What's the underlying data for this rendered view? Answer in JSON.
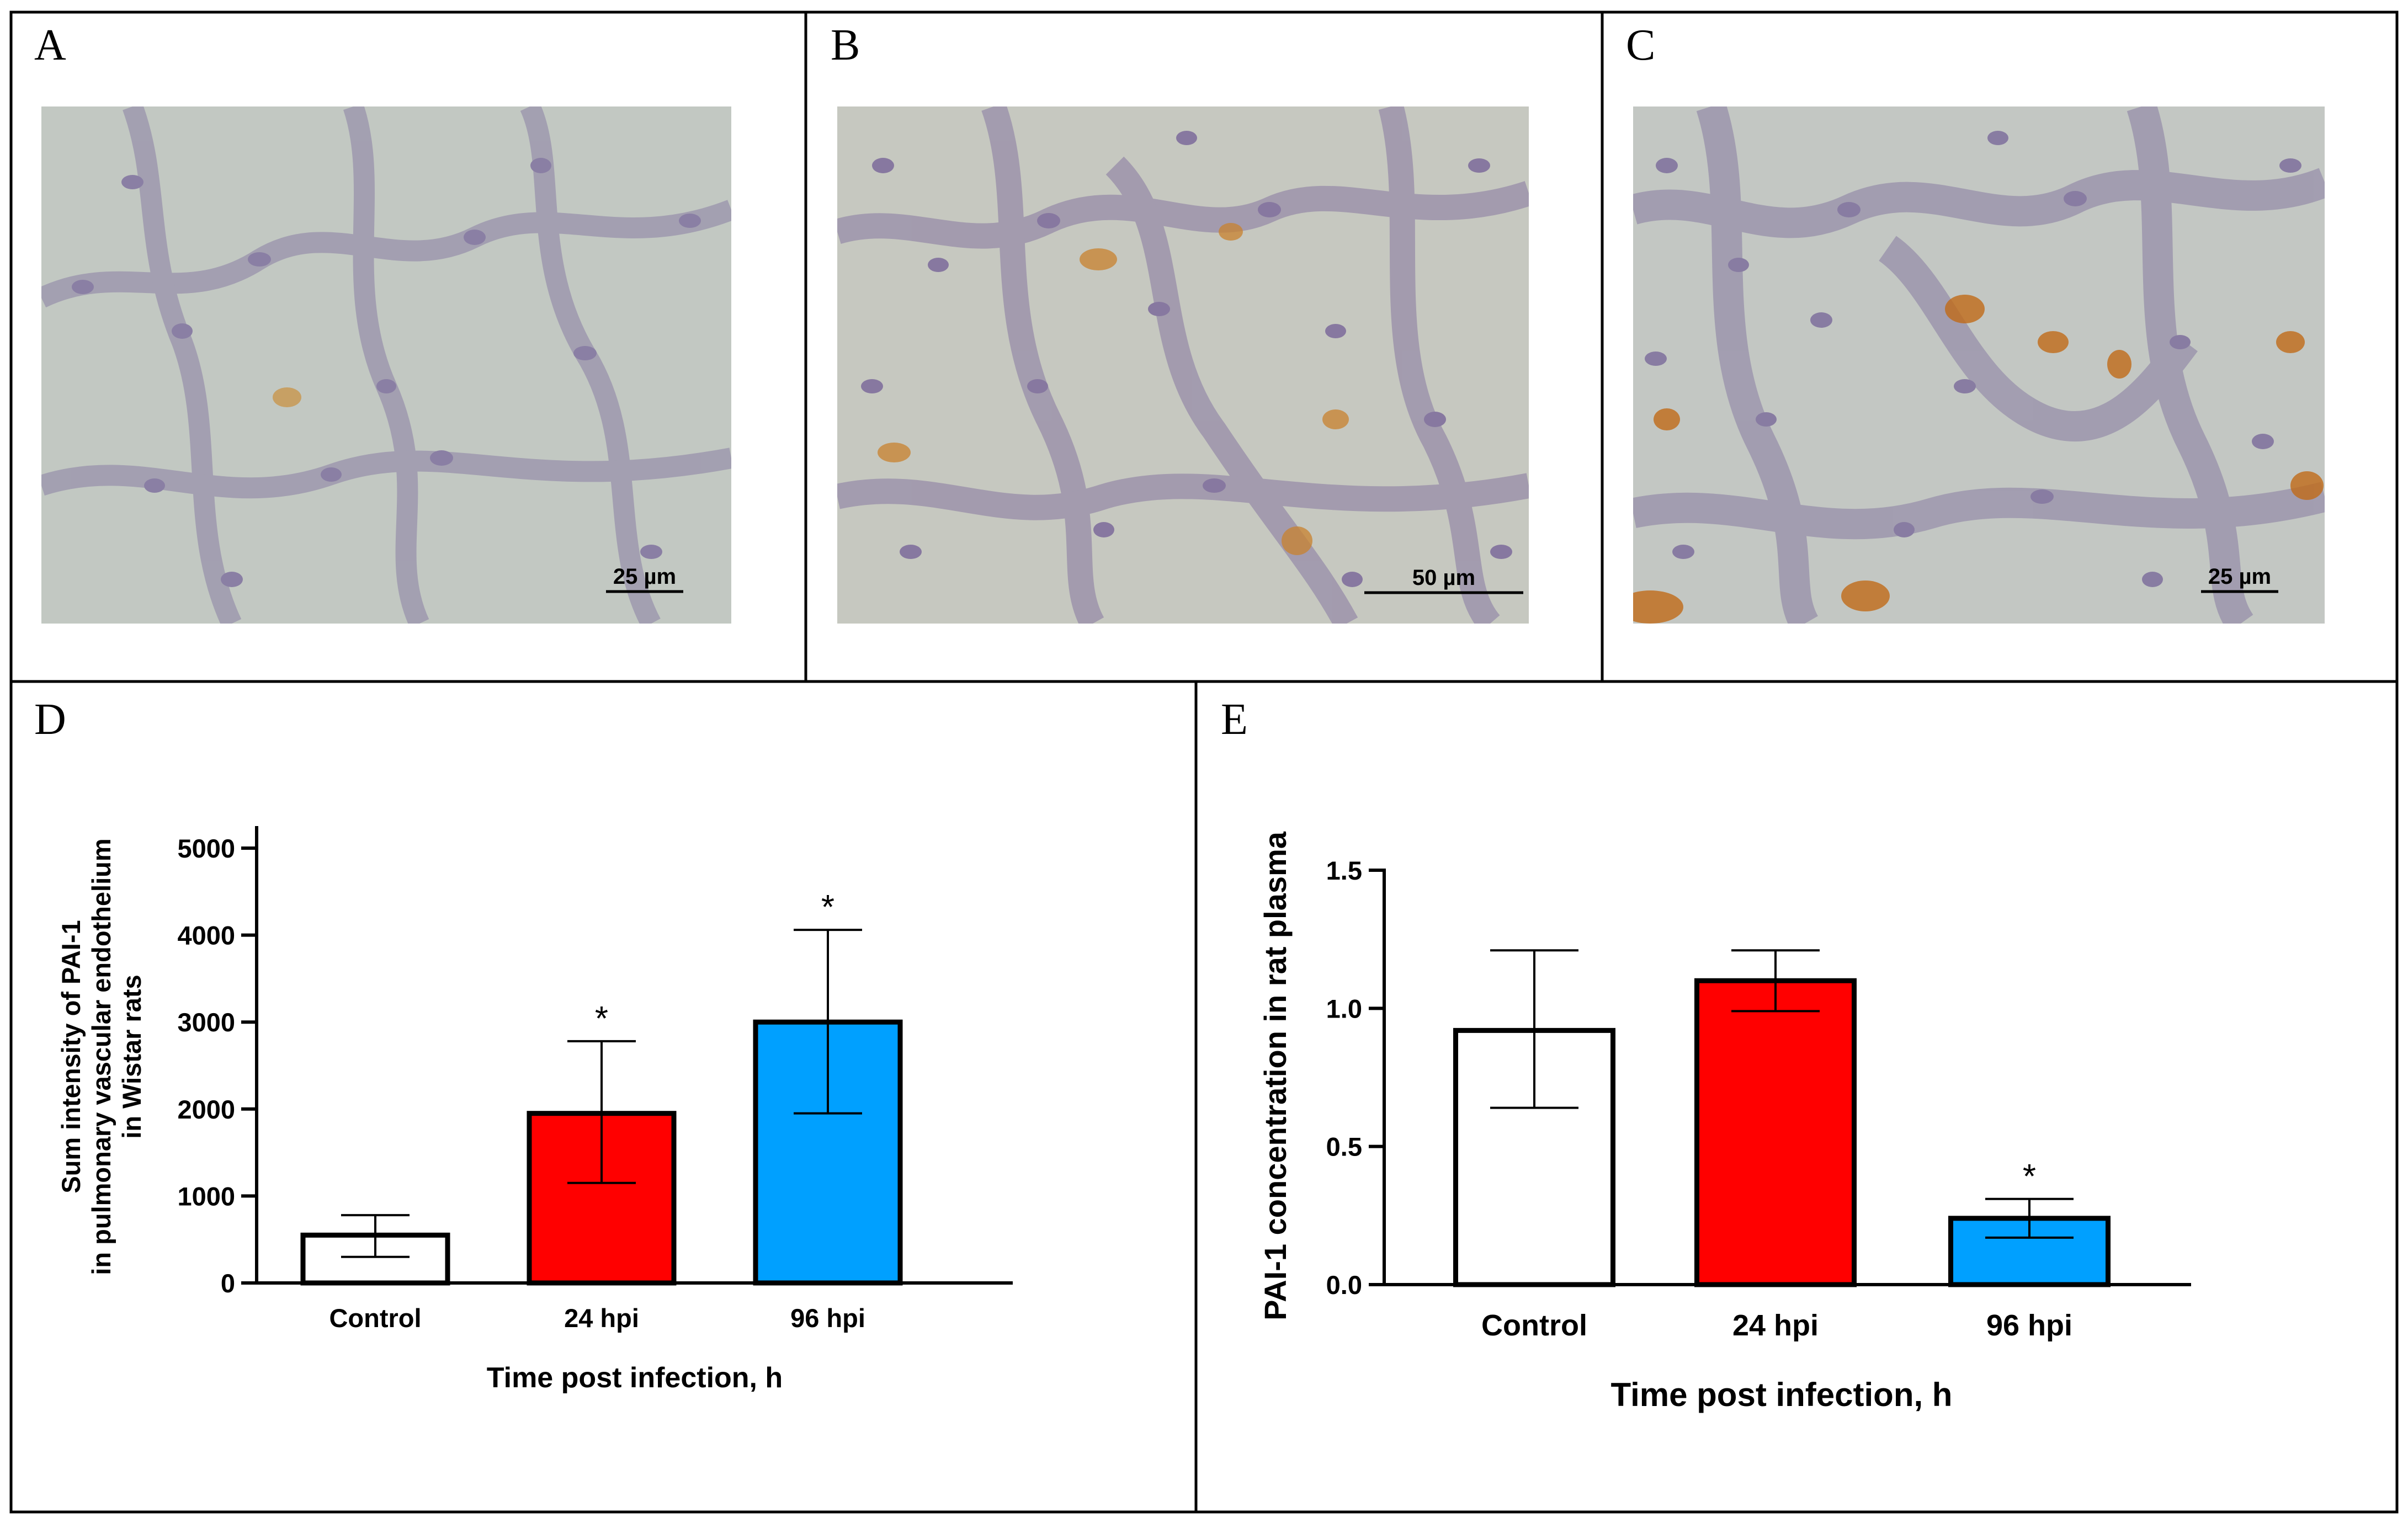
{
  "micrographs": [
    {
      "letter": "A",
      "scale_label": "25 µm",
      "colors": {
        "bg": "#c2c8c2",
        "cell": "#8a7fa4",
        "stain": "#c98f3c"
      }
    },
    {
      "letter": "B",
      "scale_label": "50 µm",
      "colors": {
        "bg": "#c6c8c0",
        "cell": "#8778a0",
        "stain": "#c8822e"
      }
    },
    {
      "letter": "C",
      "scale_label": "25 µm",
      "colors": {
        "bg": "#c3c7c3",
        "cell": "#887ca2",
        "stain": "#c06a18"
      }
    }
  ],
  "chart_data": [
    {
      "panel": "D",
      "type": "bar",
      "categories": [
        "Control",
        "24 hpi",
        "96 hpi"
      ],
      "values": [
        550,
        1950,
        3000
      ],
      "error": [
        {
          "low": 300,
          "high": 780
        },
        {
          "low": 1150,
          "high": 2780
        },
        {
          "low": 1950,
          "high": 4060
        }
      ],
      "significance": [
        "",
        "*",
        "*"
      ],
      "bar_colors": [
        "#ffffff",
        "#ff0000",
        "#00a0ff"
      ],
      "xlabel": "Time post infection, h",
      "ylabel_lines": [
        "Sum intensity of PAI-1",
        "in pulmonary vascular endothelium",
        "in Wistar rats"
      ],
      "ylim": [
        0,
        5000
      ],
      "yticks": [
        0,
        1000,
        2000,
        3000,
        4000,
        5000
      ],
      "ytick_labels": [
        "0",
        "1000",
        "2000",
        "3000",
        "4000",
        "5000"
      ]
    },
    {
      "panel": "E",
      "type": "bar",
      "categories": [
        "Control",
        "24 hpi",
        "96 hpi"
      ],
      "values": [
        0.92,
        1.1,
        0.24
      ],
      "error": [
        {
          "low": 0.64,
          "high": 1.21
        },
        {
          "low": 0.99,
          "high": 1.21
        },
        {
          "low": 0.17,
          "high": 0.31
        }
      ],
      "significance": [
        "",
        "",
        "*"
      ],
      "bar_colors": [
        "#ffffff",
        "#ff0000",
        "#00a0ff"
      ],
      "xlabel": "Time post infection, h",
      "ylabel_lines": [
        "PAI-1 concentration in rat plasma"
      ],
      "ylim": [
        0,
        1.5
      ],
      "yticks": [
        0,
        0.5,
        1.0,
        1.5
      ],
      "ytick_labels": [
        "0.0",
        "0.5",
        "1.0",
        "1.5"
      ]
    }
  ]
}
